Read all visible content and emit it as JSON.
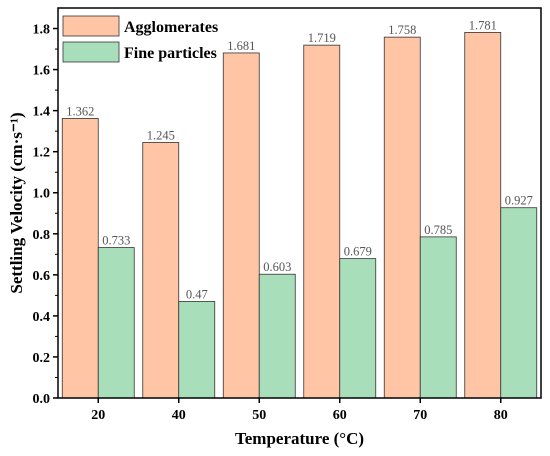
{
  "chart_data": {
    "type": "bar",
    "categories": [
      "20",
      "40",
      "50",
      "60",
      "70",
      "80"
    ],
    "series": [
      {
        "name": "Agglomerates",
        "values": [
          1.362,
          1.245,
          1.681,
          1.719,
          1.758,
          1.781
        ],
        "labels": [
          "1.362",
          "1.245",
          "1.681",
          "1.719",
          "1.758",
          "1.781"
        ],
        "color": "#FFC5A5"
      },
      {
        "name": "Fine particles",
        "values": [
          0.733,
          0.47,
          0.603,
          0.679,
          0.785,
          0.927
        ],
        "labels": [
          "0.733",
          "0.47",
          "0.603",
          "0.679",
          "0.785",
          "0.927"
        ],
        "color": "#A8DFBA"
      }
    ],
    "xlabel": "Temperature (°C)",
    "ylabel": "Settling Velocity (cm·s⁻¹)",
    "ylim": [
      0,
      1.9
    ],
    "yticks": [
      "0.0",
      "0.2",
      "0.4",
      "0.6",
      "0.8",
      "1.0",
      "1.2",
      "1.4",
      "1.6",
      "1.8"
    ],
    "grid": false,
    "legend_position": "top-left"
  }
}
